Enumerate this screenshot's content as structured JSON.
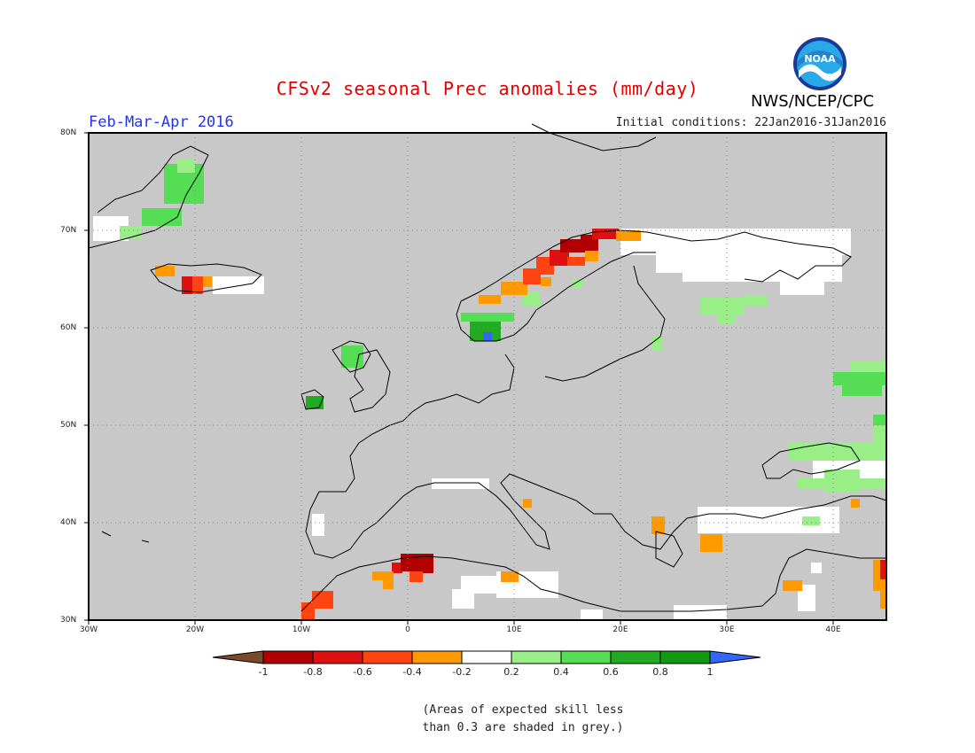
{
  "header": {
    "title": "CFSv2 seasonal Prec anomalies (mm/day)",
    "period": "Feb-Mar-Apr 2016",
    "initial_conditions": "Initial conditions: 22Jan2016-31Jan2016",
    "org": "NWS/NCEP/CPC",
    "logo_text": "NOAA"
  },
  "map": {
    "lat_labels": [
      "80N",
      "70N",
      "60N",
      "50N",
      "40N",
      "30N"
    ],
    "lon_labels": [
      "30W",
      "20W",
      "10W",
      "0",
      "10E",
      "20E",
      "30E",
      "40E"
    ],
    "extent": {
      "lon_min": -30,
      "lon_max": 45,
      "lat_min": 30,
      "lat_max": 80
    },
    "masked_color": "#c8c8c8"
  },
  "colorbar": {
    "labels": [
      "-1",
      "-0.8",
      "-0.6",
      "-0.4",
      "-0.2",
      "0.2",
      "0.4",
      "0.6",
      "0.8",
      "1"
    ],
    "colors": [
      "#7a4a2a",
      "#b00000",
      "#dd1111",
      "#ff4411",
      "#ff9900",
      "#ffffff",
      "#99ee88",
      "#55dd55",
      "#22aa22",
      "#119911",
      "#3366ff"
    ]
  },
  "footnote": {
    "line1": "(Areas of expected skill less",
    "line2": "than 0.3 are shaded in grey.)"
  }
}
